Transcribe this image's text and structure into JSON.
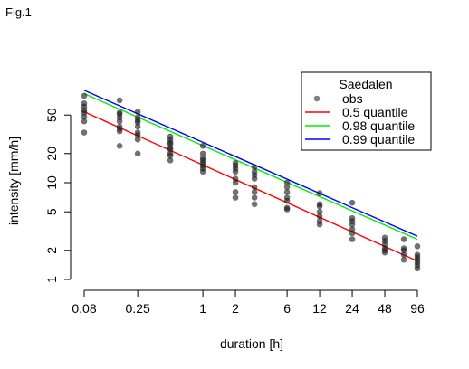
{
  "figure_label": "Fig.1",
  "chart_data": {
    "type": "scatter",
    "title": "",
    "xlabel": "duration [h]",
    "ylabel": "intensity [mm/h]",
    "x_scale": "log",
    "y_scale": "log",
    "xlim": [
      0.08,
      96
    ],
    "ylim": [
      1,
      100
    ],
    "x_ticks": [
      0.08,
      0.25,
      1,
      2,
      6,
      12,
      24,
      48,
      96
    ],
    "x_tick_labels": [
      "0.08",
      "0.25",
      "1",
      "2",
      "6",
      "12",
      "24",
      "48",
      "96"
    ],
    "y_ticks": [
      1,
      2,
      5,
      10,
      20,
      50
    ],
    "y_tick_labels": [
      "1",
      "2",
      "5",
      "10",
      "20",
      "50"
    ],
    "legend": {
      "position": "top-right",
      "title": "Saedalen",
      "entries": [
        {
          "label": "obs",
          "kind": "point",
          "color": "#808080"
        },
        {
          "label": "0.5 quantile",
          "kind": "line",
          "color": "#ff0000"
        },
        {
          "label": "0.98 quantile",
          "kind": "line",
          "color": "#00ee00"
        },
        {
          "label": "0.99 quantile",
          "kind": "line",
          "color": "#0000ff"
        }
      ]
    },
    "observations": {
      "name": "obs",
      "color": "#1a1a1a",
      "points": [
        {
          "x": 0.08,
          "y": [
            79,
            66,
            61,
            56,
            53,
            48,
            43,
            33
          ]
        },
        {
          "x": 0.17,
          "y": [
            71,
            53,
            51,
            47,
            43,
            38,
            36,
            34,
            24
          ]
        },
        {
          "x": 0.25,
          "y": [
            54,
            47,
            44,
            42,
            38,
            33,
            31,
            28,
            20
          ]
        },
        {
          "x": 0.5,
          "y": [
            30,
            28,
            26,
            25,
            23,
            22,
            20,
            19,
            17
          ]
        },
        {
          "x": 1,
          "y": [
            24,
            20,
            18,
            17,
            16,
            15,
            14,
            13
          ]
        },
        {
          "x": 2,
          "y": [
            16,
            15,
            14,
            13,
            11,
            10,
            8,
            7
          ]
        },
        {
          "x": 3,
          "y": [
            14.5,
            13,
            12,
            11,
            9,
            8,
            7,
            6
          ]
        },
        {
          "x": 6,
          "y": [
            10,
            9,
            8,
            7,
            6.5,
            5.5,
            5.3
          ]
        },
        {
          "x": 12,
          "y": [
            7.8,
            6,
            5.7,
            5,
            4.5,
            4,
            3.7
          ]
        },
        {
          "x": 24,
          "y": [
            6.2,
            4.3,
            4,
            3.7,
            3.3,
            3,
            2.6
          ]
        },
        {
          "x": 48,
          "y": [
            2.7,
            2.5,
            2.3,
            2.1,
            2,
            1.9
          ]
        },
        {
          "x": 72,
          "y": [
            2.6,
            2.1,
            2,
            1.8,
            1.6
          ]
        },
        {
          "x": 96,
          "y": [
            2.2,
            1.8,
            1.7,
            1.6,
            1.5,
            1.4,
            1.3
          ]
        }
      ]
    },
    "series": [
      {
        "name": "0.5 quantile",
        "color": "#ff0000",
        "x": [
          0.08,
          96
        ],
        "y": [
          54,
          1.55
        ]
      },
      {
        "name": "0.98 quantile",
        "color": "#00ee00",
        "x": [
          0.08,
          96
        ],
        "y": [
          83,
          2.6
        ]
      },
      {
        "name": "0.99 quantile",
        "color": "#0000ff",
        "x": [
          0.08,
          96
        ],
        "y": [
          90,
          2.8
        ]
      }
    ]
  }
}
